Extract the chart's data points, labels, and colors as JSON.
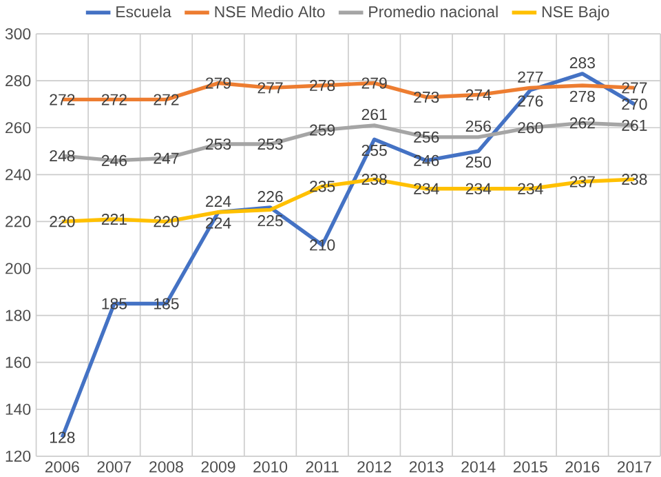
{
  "chart_data": {
    "type": "line",
    "categories": [
      "2006",
      "2007",
      "2008",
      "2009",
      "2010",
      "2011",
      "2012",
      "2013",
      "2014",
      "2015",
      "2016",
      "2017"
    ],
    "series": [
      {
        "name": "Escuela",
        "color": "#4472c4",
        "values": [
          128,
          185,
          185,
          224,
          226,
          210,
          255,
          246,
          250,
          276,
          283,
          270
        ]
      },
      {
        "name": "NSE Medio Alto",
        "color": "#ed7d31",
        "values": [
          272,
          272,
          272,
          279,
          277,
          278,
          279,
          273,
          274,
          277,
          278,
          277
        ]
      },
      {
        "name": "Promedio nacional",
        "color": "#a5a5a5",
        "values": [
          248,
          246,
          247,
          253,
          253,
          259,
          261,
          256,
          256,
          260,
          262,
          261
        ]
      },
      {
        "name": "NSE Bajo",
        "color": "#ffc000",
        "values": [
          220,
          221,
          220,
          224,
          225,
          235,
          238,
          234,
          234,
          234,
          237,
          238
        ]
      }
    ],
    "ylim": [
      120,
      300
    ],
    "yticks": [
      120,
      140,
      160,
      180,
      200,
      220,
      240,
      260,
      280,
      300
    ],
    "grid": true,
    "legend": "top",
    "data_labels": true
  }
}
